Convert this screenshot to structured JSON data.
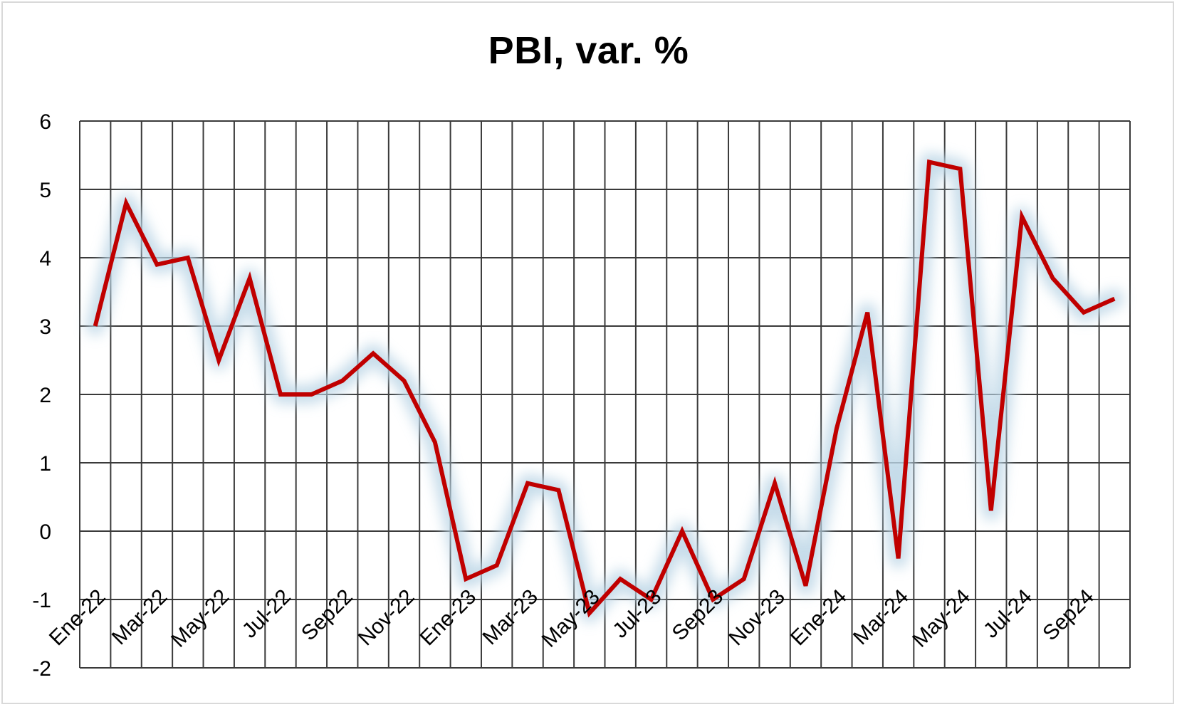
{
  "chart_data": {
    "type": "line",
    "title": "PBI, var. %",
    "xlabel": "",
    "ylabel": "",
    "ylim": [
      -2,
      6
    ],
    "yticks": [
      6,
      5,
      4,
      3,
      2,
      1,
      0,
      -1,
      -2
    ],
    "grid": true,
    "legend": "none",
    "x": [
      "Ene-22",
      "Feb-22",
      "Mar-22",
      "Abr-22",
      "May-22",
      "Jun-22",
      "Jul-22",
      "Ago-22",
      "Sep22",
      "Oct-22",
      "Nov-22",
      "Dic-22",
      "Ene-23",
      "Feb-23",
      "Mar-23",
      "Abr-23",
      "May-23",
      "Jun-23",
      "Jul-23",
      "Ago-23",
      "Sep23",
      "Oct-23",
      "Nov-23",
      "Dic-23",
      "Ene-24",
      "Feb-24",
      "Mar-24",
      "Abr-24",
      "May-24",
      "Jun-24",
      "Jul-24",
      "Ago-24",
      "Sep24",
      "Oct-24"
    ],
    "visible_x_labels": [
      "Ene-22",
      "Mar-22",
      "May-22",
      "Jul-22",
      "Sep22",
      "Nov-22",
      "Ene-23",
      "Mar-23",
      "May-23",
      "Jul-23",
      "Sep23",
      "Nov-23",
      "Ene-24",
      "Mar-24",
      "May-24",
      "Jul-24",
      "Sep24"
    ],
    "series": [
      {
        "values": [
          3.0,
          4.8,
          3.9,
          4.0,
          2.5,
          3.7,
          2.0,
          2.0,
          2.2,
          2.6,
          2.2,
          1.3,
          -0.7,
          -0.5,
          0.7,
          0.6,
          -1.2,
          -0.7,
          -1.0,
          0.0,
          -1.0,
          -0.7,
          0.7,
          -0.8,
          1.5,
          3.2,
          -0.4,
          5.4,
          5.3,
          0.3,
          4.6,
          3.7,
          3.2,
          3.4
        ],
        "color": "#c00000",
        "glow_color": "#bcd6e6"
      }
    ]
  }
}
